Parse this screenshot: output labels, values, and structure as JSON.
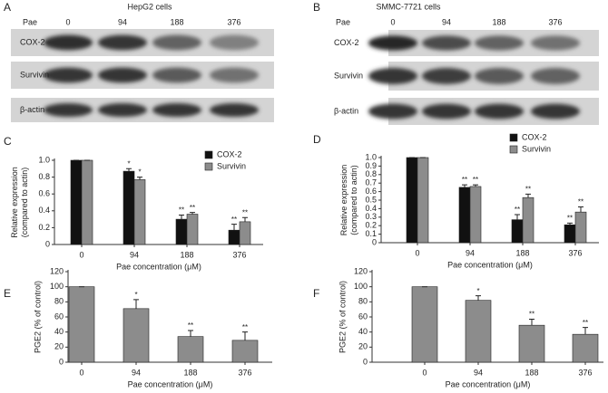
{
  "panels": {
    "a": {
      "letter": "A",
      "title": "HepG2 cells",
      "dose_label": "Pae",
      "lanes": [
        "0",
        "94",
        "188",
        "376"
      ],
      "rows": [
        "COX-2",
        "Survivin",
        "β-actin"
      ]
    },
    "b": {
      "letter": "B",
      "title": "SMMC-7721 cells",
      "dose_label": "Pae",
      "lanes": [
        "0",
        "94",
        "188",
        "376"
      ],
      "rows": [
        "COX-2",
        "Survivin",
        "β-actin"
      ]
    },
    "letters": [
      "C",
      "D",
      "E",
      "F"
    ]
  },
  "chart_data": [
    {
      "type": "bar",
      "categories": [
        "0",
        "94",
        "188",
        "376"
      ],
      "series": [
        {
          "name": "COX-2",
          "color": "#111111",
          "values": [
            1.0,
            0.87,
            0.3,
            0.17
          ],
          "errors": [
            0,
            0.03,
            0.05,
            0.07
          ],
          "significance": [
            null,
            "*",
            "**",
            "**"
          ]
        },
        {
          "name": "Survivin",
          "color": "#8c8c8c",
          "values": [
            1.0,
            0.77,
            0.36,
            0.27
          ],
          "errors": [
            0,
            0.03,
            0.02,
            0.05
          ],
          "significance": [
            null,
            "*",
            "**",
            "**"
          ]
        }
      ],
      "ylim": [
        0,
        1
      ],
      "yticks": [
        0,
        0.2,
        0.4,
        0.6,
        0.8,
        {
          "value": 1,
          "label": "1.0"
        }
      ],
      "xlabel": "Pae concentration (μM)",
      "ylabel": [
        "Relative expression",
        "(compared to actin)"
      ],
      "legend": "top-right"
    },
    {
      "type": "bar",
      "categories": [
        "0",
        "94",
        "188",
        "376"
      ],
      "series": [
        {
          "name": "COX-2",
          "color": "#111111",
          "values": [
            1.0,
            0.65,
            0.27,
            0.21
          ],
          "errors": [
            0,
            0.03,
            0.06,
            0.02
          ],
          "significance": [
            null,
            "**",
            "**",
            "**"
          ]
        },
        {
          "name": "Survivin",
          "color": "#8c8c8c",
          "values": [
            1.0,
            0.66,
            0.53,
            0.36
          ],
          "errors": [
            0,
            0.02,
            0.04,
            0.06
          ],
          "significance": [
            null,
            "**",
            "**",
            "**"
          ]
        }
      ],
      "ylim": [
        0,
        1
      ],
      "yticks": [
        0,
        0.1,
        0.2,
        0.3,
        0.4,
        0.5,
        0.6,
        0.7,
        0.8,
        0.9,
        {
          "value": 1,
          "label": "1.0"
        }
      ],
      "xlabel": "Pae concentration (μM)",
      "ylabel": [
        "Relative expression",
        "(compared to actin)"
      ],
      "legend": "top-right"
    },
    {
      "type": "bar",
      "categories": [
        "0",
        "94",
        "188",
        "376"
      ],
      "color": "#8c8c8c",
      "values": [
        100,
        71,
        34,
        29
      ],
      "errors": [
        0,
        12,
        8,
        11
      ],
      "significance": [
        null,
        "*",
        "**",
        "**"
      ],
      "ylim": [
        0,
        120
      ],
      "yticks": [
        0,
        20,
        40,
        60,
        80,
        100,
        120
      ],
      "xlabel": "Pae concentration (μM)",
      "ylabel": [
        "PGE2 (% of control)"
      ]
    },
    {
      "type": "bar",
      "categories": [
        "0",
        "94",
        "188",
        "376"
      ],
      "color": "#8c8c8c",
      "values": [
        100,
        82,
        49,
        37
      ],
      "errors": [
        0,
        6,
        8,
        9
      ],
      "significance": [
        null,
        "*",
        "**",
        "**"
      ],
      "ylim": [
        0,
        120
      ],
      "yticks": [
        0,
        20,
        40,
        60,
        80,
        100,
        120
      ],
      "xlabel": "Pae concentration (μM)",
      "ylabel": [
        "PGE2 (% of control)"
      ]
    }
  ]
}
